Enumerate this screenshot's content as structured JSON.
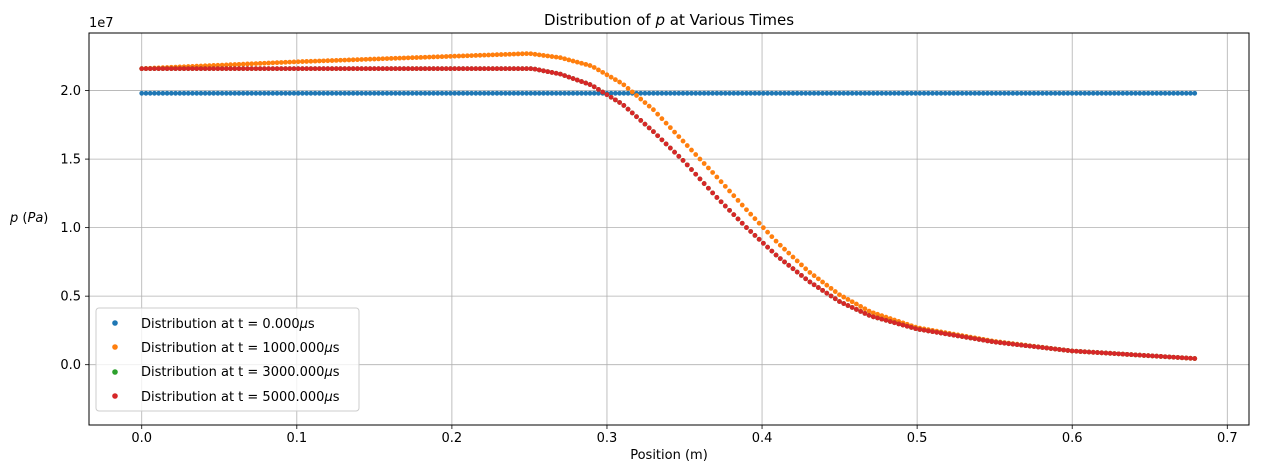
{
  "chart_data": {
    "type": "scatter",
    "title": "Distribution of p at Various Times",
    "title_parts": {
      "prefix": "Distribution of ",
      "var": "p",
      "suffix": " at Various Times"
    },
    "xlabel": "Position (m)",
    "ylabel": "p (Pa)",
    "ylabel_parts": {
      "var": "p",
      "unit": "(Pa)"
    },
    "y_scale_label": "1e7",
    "xlim": [
      -0.034,
      0.714
    ],
    "ylim": [
      -4.4,
      24.2
    ],
    "y_units_multiplier": 10000000,
    "x_ticks": [
      "0.0",
      "0.1",
      "0.2",
      "0.3",
      "0.4",
      "0.5",
      "0.6",
      "0.7"
    ],
    "x_tick_values": [
      0.0,
      0.1,
      0.2,
      0.3,
      0.4,
      0.5,
      0.6,
      0.7
    ],
    "y_ticks": [
      "0.0",
      "0.5",
      "1.0",
      "1.5",
      "2.0"
    ],
    "y_tick_values": [
      0.0,
      5.0,
      10.0,
      15.0,
      20.0
    ],
    "grid": true,
    "legend_position": "lower-left",
    "x_range": [
      0.0,
      0.679
    ],
    "point_count": 250,
    "series": [
      {
        "name": "Distribution at t = 0.000μs",
        "label_parts": {
          "prefix": "Distribution at t = 0.000",
          "unit": "μs"
        },
        "color": "#1f77b4",
        "points": [
          [
            0.0,
            19.8
          ],
          [
            0.1,
            19.8
          ],
          [
            0.2,
            19.8
          ],
          [
            0.3,
            19.8
          ],
          [
            0.4,
            19.8
          ],
          [
            0.5,
            19.8
          ],
          [
            0.6,
            19.8
          ],
          [
            0.679,
            19.8
          ]
        ]
      },
      {
        "name": "Distribution at t = 1000.000μs",
        "label_parts": {
          "prefix": "Distribution at t = 1000.000",
          "unit": "μs"
        },
        "color": "#ff7f0e",
        "points": [
          [
            0.0,
            21.6
          ],
          [
            0.05,
            21.85
          ],
          [
            0.1,
            22.1
          ],
          [
            0.15,
            22.3
          ],
          [
            0.2,
            22.5
          ],
          [
            0.25,
            22.7
          ],
          [
            0.27,
            22.4
          ],
          [
            0.29,
            21.8
          ],
          [
            0.31,
            20.5
          ],
          [
            0.33,
            18.6
          ],
          [
            0.35,
            16.2
          ],
          [
            0.37,
            13.8
          ],
          [
            0.39,
            11.3
          ],
          [
            0.41,
            8.9
          ],
          [
            0.43,
            6.8
          ],
          [
            0.45,
            5.1
          ],
          [
            0.47,
            3.85
          ],
          [
            0.5,
            2.7
          ],
          [
            0.55,
            1.7
          ],
          [
            0.6,
            1.0
          ],
          [
            0.65,
            0.65
          ],
          [
            0.679,
            0.45
          ]
        ]
      },
      {
        "name": "Distribution at t = 3000.000μs",
        "label_parts": {
          "prefix": "Distribution at t = 3000.000",
          "unit": "μs"
        },
        "color": "#2ca02c",
        "points": [
          [
            0.0,
            21.6
          ],
          [
            0.1,
            21.6
          ],
          [
            0.2,
            21.6
          ],
          [
            0.252,
            21.6
          ],
          [
            0.27,
            21.2
          ],
          [
            0.29,
            20.4
          ],
          [
            0.31,
            19.0
          ],
          [
            0.33,
            17.0
          ],
          [
            0.35,
            14.8
          ],
          [
            0.37,
            12.3
          ],
          [
            0.39,
            10.0
          ],
          [
            0.41,
            7.9
          ],
          [
            0.43,
            6.1
          ],
          [
            0.45,
            4.6
          ],
          [
            0.47,
            3.55
          ],
          [
            0.5,
            2.6
          ],
          [
            0.55,
            1.65
          ],
          [
            0.6,
            1.0
          ],
          [
            0.65,
            0.65
          ],
          [
            0.679,
            0.45
          ]
        ]
      },
      {
        "name": "Distribution at t = 5000.000μs",
        "label_parts": {
          "prefix": "Distribution at t = 5000.000",
          "unit": "μs"
        },
        "color": "#d62728",
        "points": [
          [
            0.0,
            21.6
          ],
          [
            0.1,
            21.6
          ],
          [
            0.2,
            21.6
          ],
          [
            0.252,
            21.6
          ],
          [
            0.27,
            21.2
          ],
          [
            0.29,
            20.4
          ],
          [
            0.31,
            19.0
          ],
          [
            0.33,
            17.0
          ],
          [
            0.35,
            14.8
          ],
          [
            0.37,
            12.3
          ],
          [
            0.39,
            10.0
          ],
          [
            0.41,
            7.9
          ],
          [
            0.43,
            6.1
          ],
          [
            0.45,
            4.6
          ],
          [
            0.47,
            3.55
          ],
          [
            0.5,
            2.6
          ],
          [
            0.55,
            1.65
          ],
          [
            0.6,
            1.0
          ],
          [
            0.65,
            0.65
          ],
          [
            0.679,
            0.45
          ]
        ]
      }
    ]
  }
}
